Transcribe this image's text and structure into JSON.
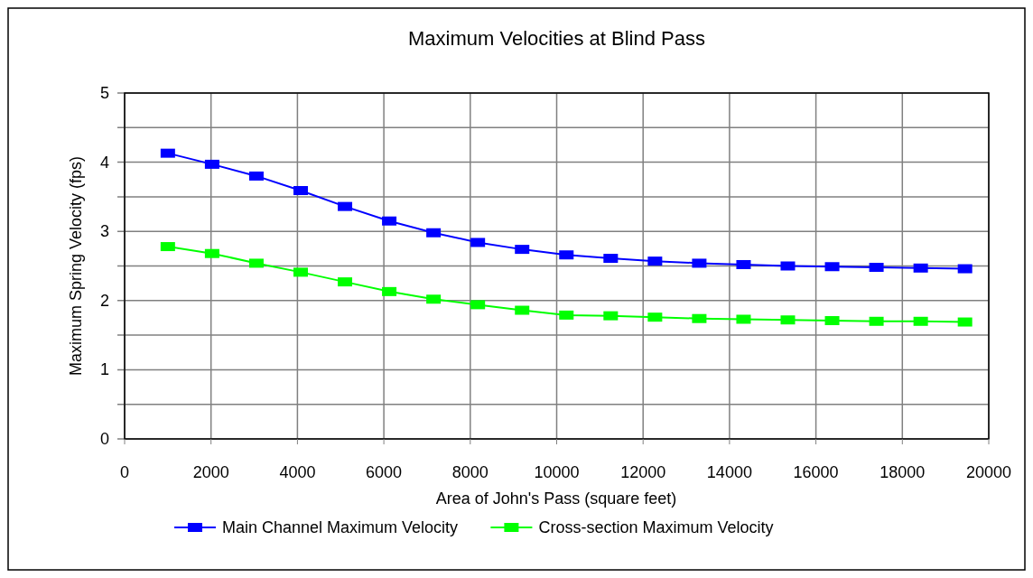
{
  "chart_data": {
    "type": "line",
    "title": "Maximum Velocities at Blind Pass",
    "xlabel": "Area of John's Pass (square feet)",
    "ylabel": "Maximum Spring Velocity (fps)",
    "x": [
      1000,
      2025,
      3050,
      4075,
      5100,
      6125,
      7150,
      8175,
      9200,
      10225,
      11250,
      12275,
      13300,
      14325,
      15350,
      16375,
      17400,
      18425,
      19450
    ],
    "series": [
      {
        "name": "Main Channel Maximum Velocity",
        "color": "#0000ff",
        "values": [
          4.13,
          3.97,
          3.8,
          3.59,
          3.36,
          3.15,
          2.98,
          2.84,
          2.74,
          2.66,
          2.61,
          2.57,
          2.54,
          2.52,
          2.5,
          2.49,
          2.48,
          2.47,
          2.46
        ]
      },
      {
        "name": "Cross-section Maximum Velocity",
        "color": "#00ff00",
        "values": [
          2.78,
          2.68,
          2.54,
          2.41,
          2.27,
          2.13,
          2.02,
          1.94,
          1.86,
          1.79,
          1.78,
          1.76,
          1.74,
          1.73,
          1.72,
          1.71,
          1.7,
          1.7,
          1.69
        ]
      }
    ],
    "xlim": [
      0,
      20000
    ],
    "xticks": [
      0,
      2000,
      4000,
      6000,
      8000,
      10000,
      12000,
      14000,
      16000,
      18000,
      20000
    ],
    "ylim": [
      0,
      5
    ],
    "yticks": [
      0,
      {
        "value": 0.5,
        "label": null
      },
      1,
      {
        "value": 1.5,
        "label": null
      },
      2,
      {
        "value": 2.5,
        "label": null
      },
      3,
      {
        "value": 3.5,
        "label": null
      },
      4,
      {
        "value": 4.5,
        "label": null
      },
      5
    ],
    "grid": true,
    "legend": "bottom",
    "marker": "square",
    "line_style": "solid"
  }
}
